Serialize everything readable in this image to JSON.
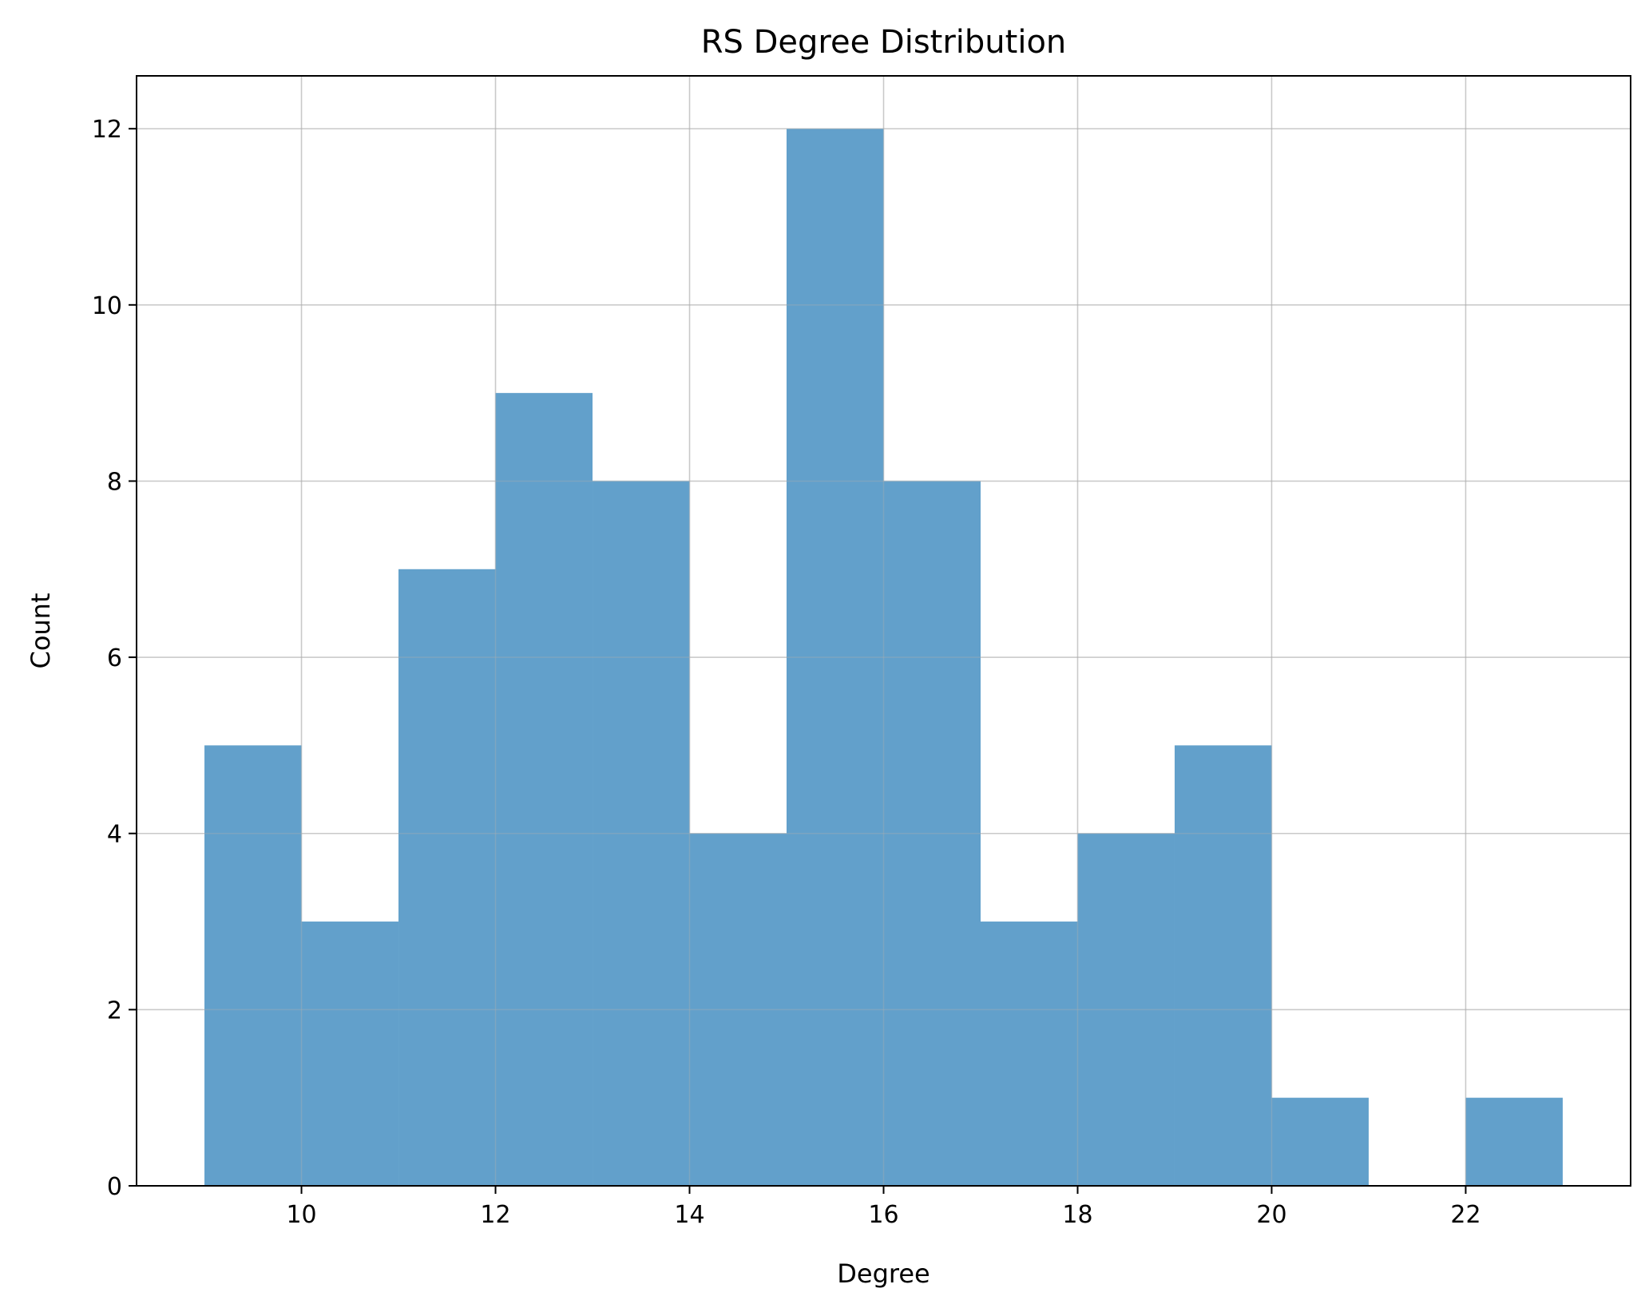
{
  "chart_data": {
    "type": "bar",
    "title": "RS Degree Distribution",
    "xlabel": "Degree",
    "ylabel": "Count",
    "bins": [
      {
        "start": 9,
        "end": 10,
        "value": 5
      },
      {
        "start": 10,
        "end": 11,
        "value": 3
      },
      {
        "start": 11,
        "end": 12,
        "value": 7
      },
      {
        "start": 12,
        "end": 13,
        "value": 9
      },
      {
        "start": 13,
        "end": 14,
        "value": 8
      },
      {
        "start": 14,
        "end": 15,
        "value": 4
      },
      {
        "start": 15,
        "end": 16,
        "value": 12
      },
      {
        "start": 16,
        "end": 17,
        "value": 8
      },
      {
        "start": 17,
        "end": 18,
        "value": 3
      },
      {
        "start": 18,
        "end": 19,
        "value": 4
      },
      {
        "start": 19,
        "end": 20,
        "value": 5
      },
      {
        "start": 20,
        "end": 21,
        "value": 1
      },
      {
        "start": 21,
        "end": 22,
        "value": 0
      },
      {
        "start": 22,
        "end": 23,
        "value": 1
      }
    ],
    "xlim": [
      8.3,
      23.7
    ],
    "ylim": [
      0,
      12.6
    ],
    "xticks": [
      10,
      12,
      14,
      16,
      18,
      20,
      22
    ],
    "yticks": [
      0,
      2,
      4,
      6,
      8,
      10,
      12
    ],
    "bar_color": "#62a0cb",
    "grid": true,
    "legend": "none"
  }
}
